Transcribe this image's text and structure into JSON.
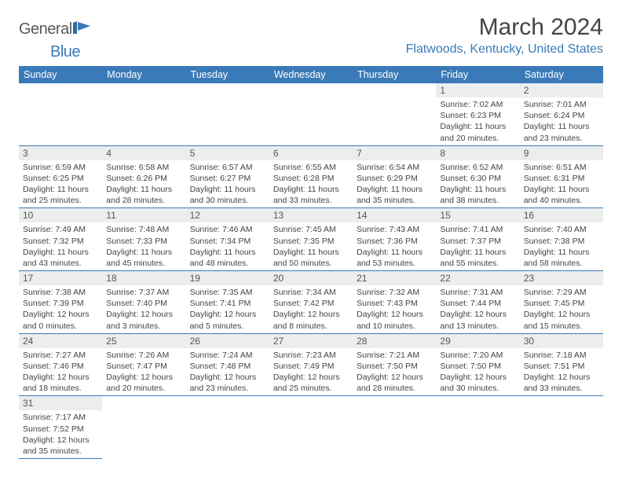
{
  "logo": {
    "general": "General",
    "blue": "Blue"
  },
  "title": "March 2024",
  "location": "Flatwoods, Kentucky, United States",
  "colors": {
    "header_bg": "#3a7ab8",
    "header_fg": "#ffffff",
    "daynum_bg": "#eceded",
    "border": "#3a7ab8",
    "text": "#444444",
    "logo_gray": "#5a5a5a",
    "logo_blue": "#3a7ab8"
  },
  "weekdays": [
    "Sunday",
    "Monday",
    "Tuesday",
    "Wednesday",
    "Thursday",
    "Friday",
    "Saturday"
  ],
  "weeks": [
    [
      null,
      null,
      null,
      null,
      null,
      {
        "n": "1",
        "sr": "7:02 AM",
        "ss": "6:23 PM",
        "dl": "11 hours and 20 minutes."
      },
      {
        "n": "2",
        "sr": "7:01 AM",
        "ss": "6:24 PM",
        "dl": "11 hours and 23 minutes."
      }
    ],
    [
      {
        "n": "3",
        "sr": "6:59 AM",
        "ss": "6:25 PM",
        "dl": "11 hours and 25 minutes."
      },
      {
        "n": "4",
        "sr": "6:58 AM",
        "ss": "6:26 PM",
        "dl": "11 hours and 28 minutes."
      },
      {
        "n": "5",
        "sr": "6:57 AM",
        "ss": "6:27 PM",
        "dl": "11 hours and 30 minutes."
      },
      {
        "n": "6",
        "sr": "6:55 AM",
        "ss": "6:28 PM",
        "dl": "11 hours and 33 minutes."
      },
      {
        "n": "7",
        "sr": "6:54 AM",
        "ss": "6:29 PM",
        "dl": "11 hours and 35 minutes."
      },
      {
        "n": "8",
        "sr": "6:52 AM",
        "ss": "6:30 PM",
        "dl": "11 hours and 38 minutes."
      },
      {
        "n": "9",
        "sr": "6:51 AM",
        "ss": "6:31 PM",
        "dl": "11 hours and 40 minutes."
      }
    ],
    [
      {
        "n": "10",
        "sr": "7:49 AM",
        "ss": "7:32 PM",
        "dl": "11 hours and 43 minutes."
      },
      {
        "n": "11",
        "sr": "7:48 AM",
        "ss": "7:33 PM",
        "dl": "11 hours and 45 minutes."
      },
      {
        "n": "12",
        "sr": "7:46 AM",
        "ss": "7:34 PM",
        "dl": "11 hours and 48 minutes."
      },
      {
        "n": "13",
        "sr": "7:45 AM",
        "ss": "7:35 PM",
        "dl": "11 hours and 50 minutes."
      },
      {
        "n": "14",
        "sr": "7:43 AM",
        "ss": "7:36 PM",
        "dl": "11 hours and 53 minutes."
      },
      {
        "n": "15",
        "sr": "7:41 AM",
        "ss": "7:37 PM",
        "dl": "11 hours and 55 minutes."
      },
      {
        "n": "16",
        "sr": "7:40 AM",
        "ss": "7:38 PM",
        "dl": "11 hours and 58 minutes."
      }
    ],
    [
      {
        "n": "17",
        "sr": "7:38 AM",
        "ss": "7:39 PM",
        "dl": "12 hours and 0 minutes."
      },
      {
        "n": "18",
        "sr": "7:37 AM",
        "ss": "7:40 PM",
        "dl": "12 hours and 3 minutes."
      },
      {
        "n": "19",
        "sr": "7:35 AM",
        "ss": "7:41 PM",
        "dl": "12 hours and 5 minutes."
      },
      {
        "n": "20",
        "sr": "7:34 AM",
        "ss": "7:42 PM",
        "dl": "12 hours and 8 minutes."
      },
      {
        "n": "21",
        "sr": "7:32 AM",
        "ss": "7:43 PM",
        "dl": "12 hours and 10 minutes."
      },
      {
        "n": "22",
        "sr": "7:31 AM",
        "ss": "7:44 PM",
        "dl": "12 hours and 13 minutes."
      },
      {
        "n": "23",
        "sr": "7:29 AM",
        "ss": "7:45 PM",
        "dl": "12 hours and 15 minutes."
      }
    ],
    [
      {
        "n": "24",
        "sr": "7:27 AM",
        "ss": "7:46 PM",
        "dl": "12 hours and 18 minutes."
      },
      {
        "n": "25",
        "sr": "7:26 AM",
        "ss": "7:47 PM",
        "dl": "12 hours and 20 minutes."
      },
      {
        "n": "26",
        "sr": "7:24 AM",
        "ss": "7:48 PM",
        "dl": "12 hours and 23 minutes."
      },
      {
        "n": "27",
        "sr": "7:23 AM",
        "ss": "7:49 PM",
        "dl": "12 hours and 25 minutes."
      },
      {
        "n": "28",
        "sr": "7:21 AM",
        "ss": "7:50 PM",
        "dl": "12 hours and 28 minutes."
      },
      {
        "n": "29",
        "sr": "7:20 AM",
        "ss": "7:50 PM",
        "dl": "12 hours and 30 minutes."
      },
      {
        "n": "30",
        "sr": "7:18 AM",
        "ss": "7:51 PM",
        "dl": "12 hours and 33 minutes."
      }
    ],
    [
      {
        "n": "31",
        "sr": "7:17 AM",
        "ss": "7:52 PM",
        "dl": "12 hours and 35 minutes."
      },
      null,
      null,
      null,
      null,
      null,
      null
    ]
  ],
  "labels": {
    "sunrise": "Sunrise: ",
    "sunset": "Sunset: ",
    "daylight": "Daylight: "
  }
}
